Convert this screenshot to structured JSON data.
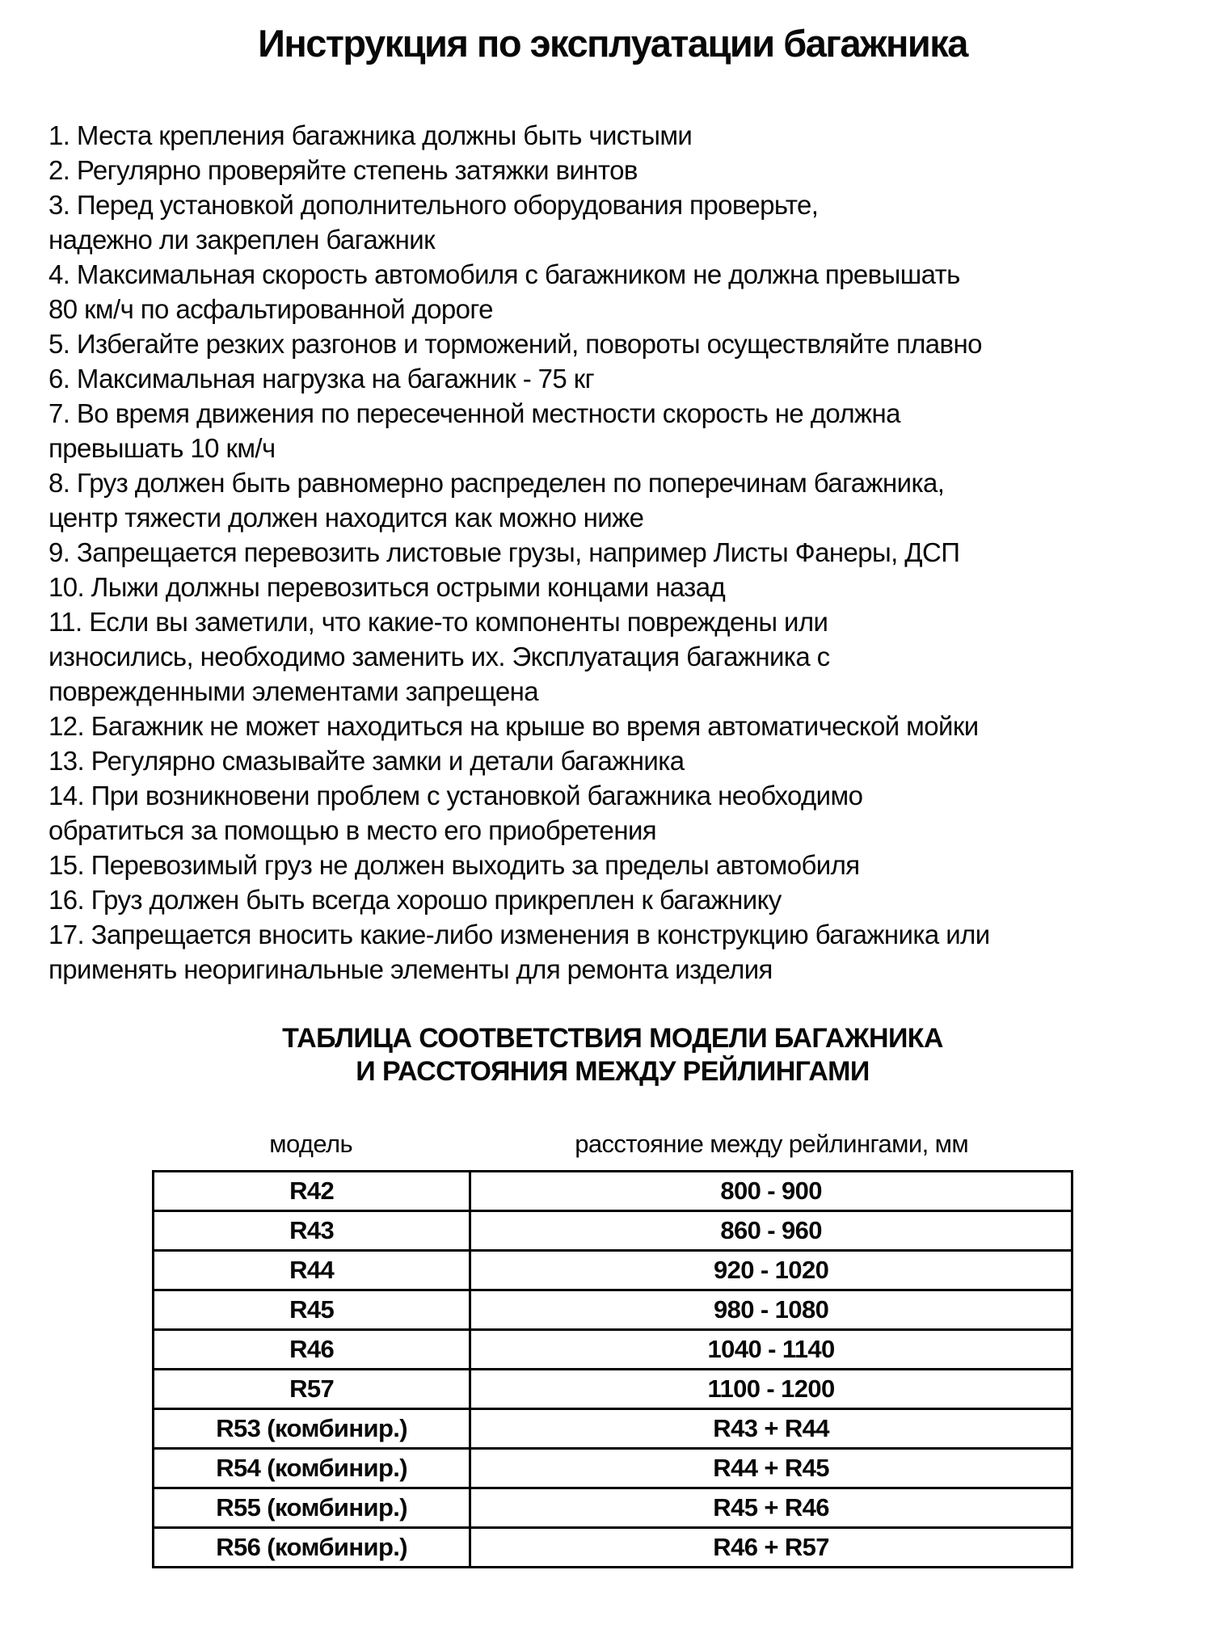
{
  "document": {
    "title": "Инструкция по эксплуатации багажника",
    "instructions": [
      "1. Места крепления багажника должны быть чистыми",
      "2. Регулярно проверяйте степень затяжки винтов",
      "3. Перед установкой дополнительного оборудования проверьте,\nнадежно ли закреплен багажник",
      "4. Максимальная скорость автомобиля с багажником не должна превышать\n80 км/ч по асфальтированной дороге",
      "5. Избегайте резких разгонов и торможений, повороты осуществляйте плавно",
      "6. Максимальная нагрузка на багажник - 75 кг",
      "7. Во время движения по пересеченной местности скорость не должна\nпревышать 10 км/ч",
      "8. Груз должен быть равномерно распределен по поперечинам багажника,\nцентр тяжести должен находится как можно ниже",
      "9. Запрещается перевозить листовые грузы, например Листы Фанеры, ДСП",
      "10. Лыжи должны перевозиться острыми концами назад",
      "11. Если вы заметили, что какие-то компоненты повреждены или\nизносились, необходимо заменить их. Эксплуатация багажника с\nповрежденными элементами запрещена",
      "12. Багажник не может находиться на крыше во время автоматической мойки",
      "13. Регулярно смазывайте замки и детали багажника",
      "14. При возникновени проблем с установкой багажника необходимо\nобратиться за помощью в место его приобретения",
      "15. Перевозимый груз не должен выходить за пределы автомобиля",
      "16. Груз должен быть всегда хорошо прикреплен к багажнику",
      "17. Запрещается вносить какие-либо изменения в конструкцию багажника или\nприменять неоригинальные элементы для ремонта изделия"
    ],
    "table_section": {
      "heading": "ТАБЛИЦА СООТВЕТСТВИЯ МОДЕЛИ БАГАЖНИКА\nИ РАССТОЯНИЯ МЕЖДУ РЕЙЛИНГАМИ",
      "column_headers": {
        "model": "модель",
        "distance": "расстояние между рейлингами, мм"
      },
      "rows": [
        {
          "model": "R42",
          "distance": "800 - 900"
        },
        {
          "model": "R43",
          "distance": "860 - 960"
        },
        {
          "model": "R44",
          "distance": "920 - 1020"
        },
        {
          "model": "R45",
          "distance": "980 - 1080"
        },
        {
          "model": "R46",
          "distance": "1040 - 1140"
        },
        {
          "model": "R57",
          "distance": "1100 - 1200"
        },
        {
          "model": "R53 (комбинир.)",
          "distance": "R43 + R44"
        },
        {
          "model": "R54 (комбинир.)",
          "distance": "R44 + R45"
        },
        {
          "model": "R55 (комбинир.)",
          "distance": "R45 + R46"
        },
        {
          "model": "R56 (комбинир.)",
          "distance": "R46 + R57"
        }
      ]
    }
  }
}
